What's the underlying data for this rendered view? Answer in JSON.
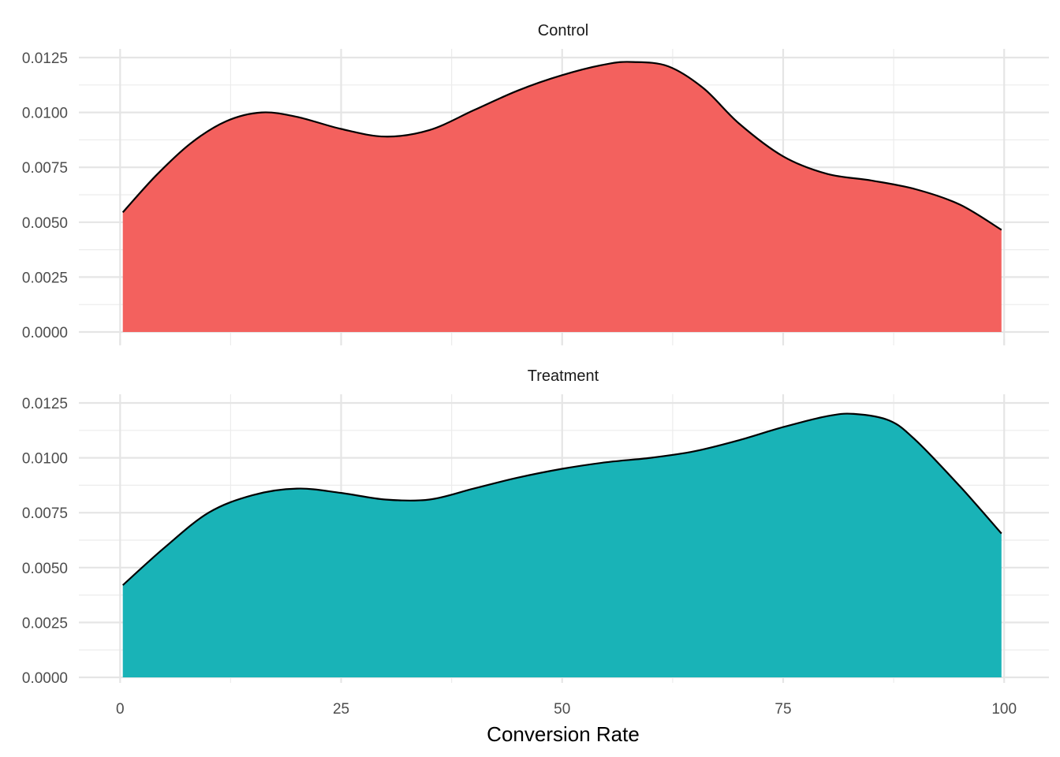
{
  "chart_data": {
    "type": "area",
    "subtype": "faceted-density",
    "xlabel": "Conversion Rate",
    "ylabel": "",
    "xlim": [
      -2,
      105
    ],
    "ylim": [
      0,
      0.0128
    ],
    "x_ticks": [
      0,
      25,
      50,
      75,
      100
    ],
    "x_tick_labels": [
      "0",
      "25",
      "50",
      "75",
      "100"
    ],
    "y_ticks": [
      0,
      0.0025,
      0.005,
      0.0075,
      0.01,
      0.0125
    ],
    "y_tick_labels": [
      "0.0000",
      "0.0025",
      "0.0050",
      "0.0075",
      "0.0100",
      "0.0125"
    ],
    "grid": true,
    "legend": "none",
    "panels": [
      {
        "label": "Control",
        "color": "#F3615E",
        "x": [
          0.3,
          4,
          8,
          12,
          16,
          20,
          25,
          30,
          35,
          40,
          45,
          50,
          55,
          58,
          62,
          66,
          70,
          75,
          80,
          85,
          90,
          95,
          99.7
        ],
        "values": [
          0.00545,
          0.0071,
          0.0086,
          0.0096,
          0.01,
          0.0098,
          0.00925,
          0.0089,
          0.0092,
          0.0101,
          0.011,
          0.0117,
          0.0122,
          0.0123,
          0.0121,
          0.0111,
          0.0095,
          0.008,
          0.0072,
          0.0069,
          0.0065,
          0.0058,
          0.00465
        ]
      },
      {
        "label": "Treatment",
        "color": "#19B3B7",
        "x": [
          0.3,
          5,
          10,
          15,
          20,
          25,
          30,
          35,
          40,
          45,
          50,
          55,
          60,
          65,
          70,
          75,
          80,
          83,
          87,
          90,
          95,
          99.7
        ],
        "values": [
          0.0042,
          0.0059,
          0.0075,
          0.0083,
          0.0086,
          0.0084,
          0.0081,
          0.0081,
          0.0086,
          0.0091,
          0.0095,
          0.0098,
          0.01,
          0.0103,
          0.0108,
          0.0114,
          0.0119,
          0.012,
          0.0117,
          0.0108,
          0.0087,
          0.00655
        ]
      }
    ]
  }
}
